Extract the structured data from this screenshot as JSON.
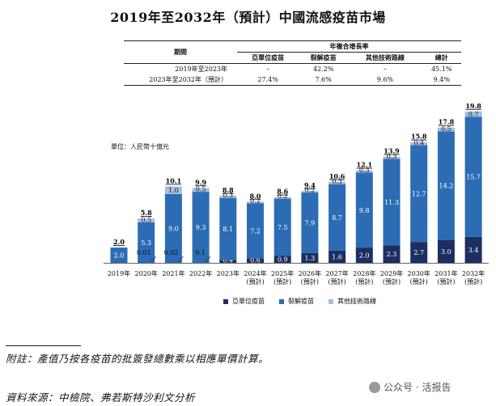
{
  "title": "2019年至2032年（預計）中國流感疫苗市場",
  "cagr_table": {
    "group_header": "年複合增長率",
    "period_header": "期間",
    "columns": [
      "亞單位疫苗",
      "裂解疫苗",
      "其他技術路線",
      "總計"
    ],
    "rows": [
      {
        "period": "2019年至2023年",
        "values": [
          "–",
          "42.2%",
          "–",
          "45.1%"
        ]
      },
      {
        "period": "2023年至2032年（預計）",
        "values": [
          "27.4%",
          "7.6%",
          "9.6%",
          "9.4%"
        ]
      }
    ]
  },
  "unit_label": "單位：人民幣十億元",
  "colors": {
    "subunit": "#1c2f63",
    "split": "#2b6cb5",
    "other": "#a5bfdf"
  },
  "chart_data": {
    "type": "bar",
    "stacked": true,
    "categories": [
      "2019年",
      "2020年",
      "2021年",
      "2022年",
      "2023年",
      "2024年\n(預計)",
      "2025年\n(預計)",
      "2026年\n(預計)",
      "2027年\n(預計)",
      "2028年\n(預計)",
      "2029年\n(預計)",
      "2030年\n(預計)",
      "2031年\n(預計)",
      "2032年\n(預計)"
    ],
    "series": [
      {
        "name": "亞單位疫苗",
        "values": [
          0,
          0,
          0,
          0,
          0.4,
          0.6,
          0.9,
          1.3,
          1.6,
          2.0,
          2.3,
          2.7,
          3.0,
          3.4
        ],
        "labels": [
          "",
          "",
          "",
          "",
          "0.4",
          "0.6",
          "0.9",
          "1.3",
          "1.6",
          "2.0",
          "2.3",
          "2.7",
          "3.0",
          "3.4"
        ]
      },
      {
        "name": "裂解疫苗",
        "values": [
          2.0,
          5.3,
          9.0,
          9.3,
          8.1,
          7.2,
          7.5,
          7.9,
          8.7,
          9.8,
          11.3,
          12.7,
          14.2,
          15.7
        ],
        "labels": [
          "2.0",
          "5.3",
          "9.0",
          "9.3",
          "8.1",
          "7.2",
          "7.5",
          "7.9",
          "8.7",
          "9.8",
          "11.3",
          "12.7",
          "14.2",
          "15.7"
        ]
      },
      {
        "name": "其他技術路線",
        "values": [
          0,
          0.5,
          1.0,
          0.5,
          0.3,
          0.2,
          0.2,
          0.2,
          0.3,
          0.3,
          0.3,
          0.4,
          0.5,
          0.7
        ],
        "labels": [
          "",
          "0.5",
          "1.0",
          "0.5",
          "0.3",
          "0.2",
          "0.2",
          "0.2",
          "0.3",
          "0.3",
          "0.3",
          "0.4",
          "0.5",
          "0.7"
        ]
      }
    ],
    "small_annotations": [
      {
        "category_index": 1,
        "text": "0.01"
      },
      {
        "category_index": 2,
        "text": "0.02"
      },
      {
        "category_index": 3,
        "text": "0.1"
      }
    ],
    "totals": [
      "2.0",
      "5.8",
      "10.1",
      "9.9",
      "8.8",
      "8.0",
      "8.6",
      "9.4",
      "10.6",
      "12.1",
      "13.9",
      "15.8",
      "17.8",
      "19.8"
    ],
    "ylim": [
      0,
      20
    ]
  },
  "note": "附註：產值乃按各疫苗的批簽發總數乘以相應單價計算。",
  "source": "資料來源：中檢院、弗若斯特沙利文分析",
  "watermark": "公众号 · 活报告"
}
